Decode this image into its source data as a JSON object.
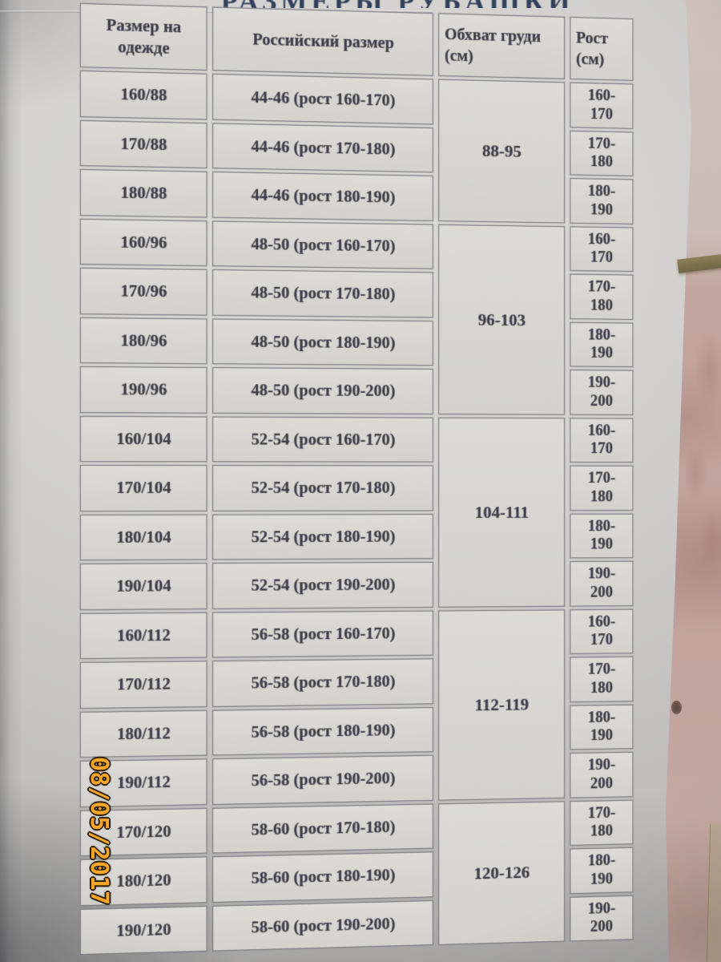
{
  "page": {
    "title_clipped": "РАЗМЕРЫ РУБАШКИ",
    "date_stamp": "08/05/2017"
  },
  "colors": {
    "stamp_orange": "#f7a62a",
    "stamp_outline": "#2e2008",
    "paper_gray": "#d2d1cf",
    "marble_pink": "#c2a39c",
    "grout_olive": "#7f7452",
    "ink": "#3f3f48",
    "title_ink": "#33405a"
  },
  "table": {
    "headers": {
      "size_on_clothing": "Размер на\nодежде",
      "russian_size": "Российский размер",
      "chest_cm": "Обхват груди\n(см)",
      "height_cm": "Рост\n(см)"
    },
    "rows": [
      {
        "clothing_size": "160/88",
        "russian_size": "44-46 (рост 160-170)",
        "height_range": "160-\n170"
      },
      {
        "clothing_size": "170/88",
        "russian_size": "44-46 (рост 170-180)",
        "height_range": "170-\n180"
      },
      {
        "clothing_size": "180/88",
        "russian_size": "44-46 (рост 180-190)",
        "height_range": "180-\n190"
      },
      {
        "clothing_size": "160/96",
        "russian_size": "48-50 (рост 160-170)",
        "height_range": "160-\n170"
      },
      {
        "clothing_size": "170/96",
        "russian_size": "48-50 (рост 170-180)",
        "height_range": "170-\n180"
      },
      {
        "clothing_size": "180/96",
        "russian_size": "48-50 (рост 180-190)",
        "height_range": "180-\n190"
      },
      {
        "clothing_size": "190/96",
        "russian_size": "48-50 (рост 190-200)",
        "height_range": "190-\n200"
      },
      {
        "clothing_size": "160/104",
        "russian_size": "52-54 (рост 160-170)",
        "height_range": "160-\n170"
      },
      {
        "clothing_size": "170/104",
        "russian_size": "52-54 (рост 170-180)",
        "height_range": "170-\n180"
      },
      {
        "clothing_size": "180/104",
        "russian_size": "52-54 (рост 180-190)",
        "height_range": "180-\n190"
      },
      {
        "clothing_size": "190/104",
        "russian_size": "52-54 (рост 190-200)",
        "height_range": "190-\n200"
      },
      {
        "clothing_size": "160/112",
        "russian_size": "56-58 (рост 160-170)",
        "height_range": "160-\n170"
      },
      {
        "clothing_size": "170/112",
        "russian_size": "56-58 (рост 170-180)",
        "height_range": "170-\n180"
      },
      {
        "clothing_size": "180/112",
        "russian_size": "56-58 (рост 180-190)",
        "height_range": "180-\n190"
      },
      {
        "clothing_size": "190/112",
        "russian_size": "56-58 (рост 190-200)",
        "height_range": "190-\n200"
      },
      {
        "clothing_size": "170/120",
        "russian_size": "58-60 (рост 170-180)",
        "height_range": "170-\n180"
      },
      {
        "clothing_size": "180/120",
        "russian_size": "58-60 (рост 180-190)",
        "height_range": "180-\n190"
      },
      {
        "clothing_size": "190/120",
        "russian_size": "58-60 (рост 190-200)",
        "height_range": "190-\n200"
      }
    ],
    "chest_groups": [
      {
        "chest_range": "88-95",
        "row_span": 3
      },
      {
        "chest_range": "96-103",
        "row_span": 4
      },
      {
        "chest_range": "104-111",
        "row_span": 4
      },
      {
        "chest_range": "112-119",
        "row_span": 4
      },
      {
        "chest_range": "120-126",
        "row_span": 3
      }
    ]
  }
}
